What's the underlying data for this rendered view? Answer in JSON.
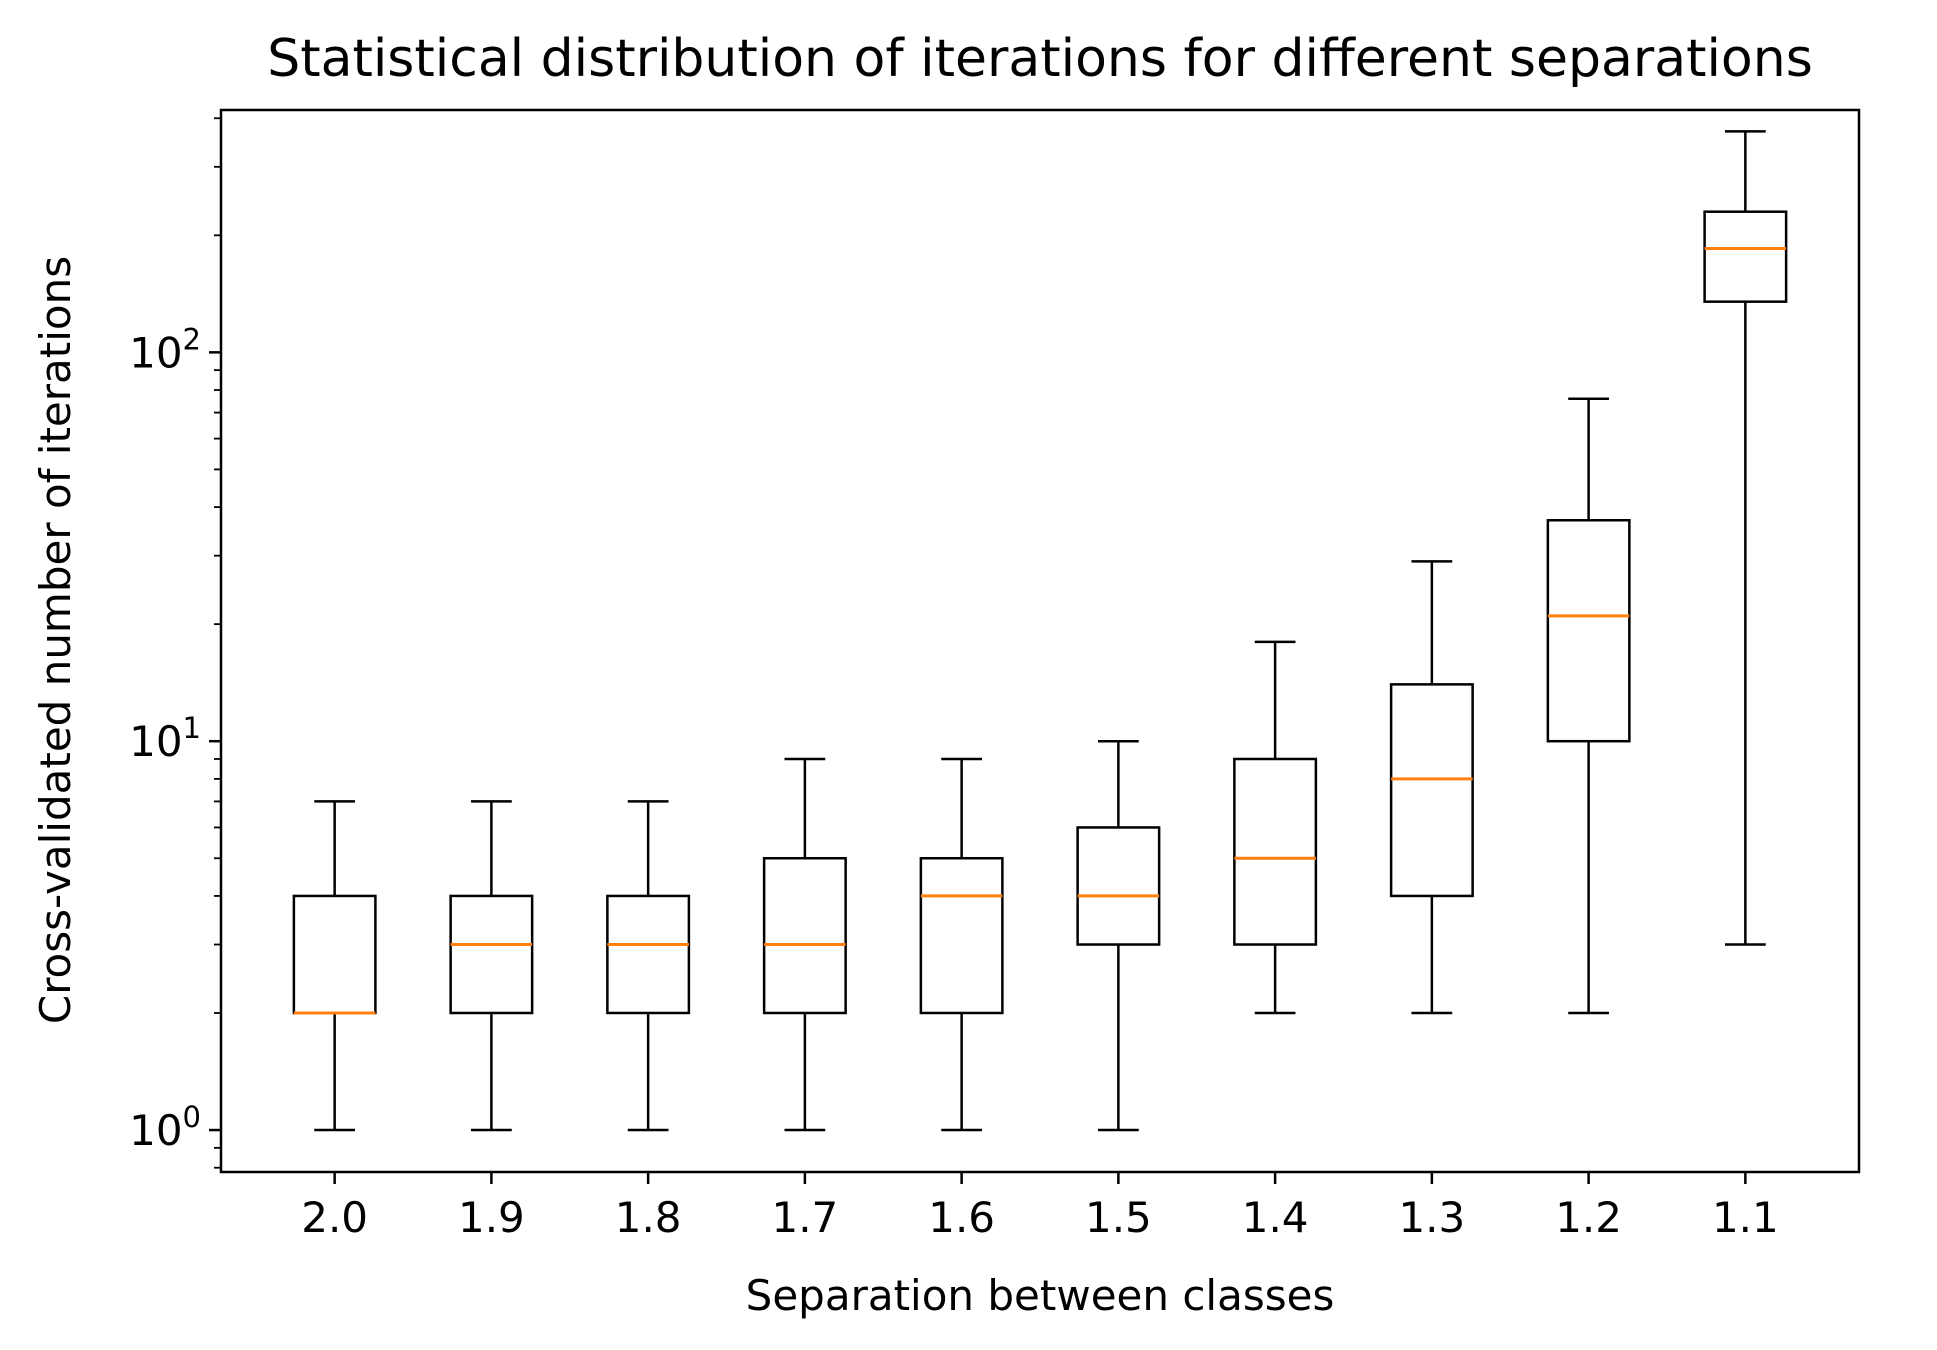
{
  "chart_data": {
    "type": "box",
    "title": "Statistical distribution of iterations for different separations",
    "xlabel": "Separation between classes",
    "ylabel": "Cross-validated number of iterations",
    "yscale": "log",
    "ylim": [
      0.78,
      420
    ],
    "categories": [
      "2.0",
      "1.9",
      "1.8",
      "1.7",
      "1.6",
      "1.5",
      "1.4",
      "1.3",
      "1.2",
      "1.1"
    ],
    "yticks": [
      {
        "value": 1,
        "base": "10",
        "exp": "0"
      },
      {
        "value": 10,
        "base": "10",
        "exp": "1"
      },
      {
        "value": 100,
        "base": "10",
        "exp": "2"
      }
    ],
    "boxes": [
      {
        "whisker_low": 1,
        "q1": 2,
        "median": 2,
        "q3": 4,
        "whisker_high": 7
      },
      {
        "whisker_low": 1,
        "q1": 2,
        "median": 3,
        "q3": 4,
        "whisker_high": 7
      },
      {
        "whisker_low": 1,
        "q1": 2,
        "median": 3,
        "q3": 4,
        "whisker_high": 7
      },
      {
        "whisker_low": 1,
        "q1": 2,
        "median": 3,
        "q3": 5,
        "whisker_high": 9
      },
      {
        "whisker_low": 1,
        "q1": 2,
        "median": 4,
        "q3": 5,
        "whisker_high": 9
      },
      {
        "whisker_low": 1,
        "q1": 3,
        "median": 4,
        "q3": 6,
        "whisker_high": 10
      },
      {
        "whisker_low": 2,
        "q1": 3,
        "median": 5,
        "q3": 9,
        "whisker_high": 18
      },
      {
        "whisker_low": 2,
        "q1": 4,
        "median": 8,
        "q3": 14,
        "whisker_high": 29
      },
      {
        "whisker_low": 2,
        "q1": 10,
        "median": 21,
        "q3": 37,
        "whisker_high": 76
      },
      {
        "whisker_low": 3,
        "q1": 135,
        "median": 185,
        "q3": 230,
        "whisker_high": 370
      }
    ],
    "grid": false,
    "colors": {
      "box": "#000000",
      "median": "#ff7f0e"
    }
  }
}
